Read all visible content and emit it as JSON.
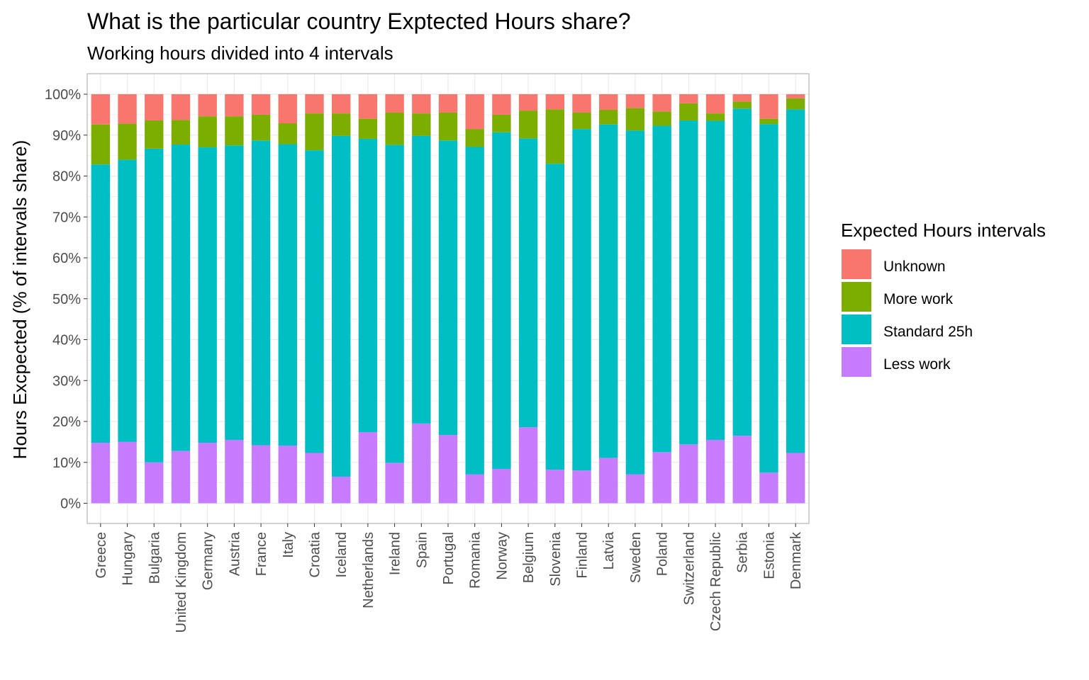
{
  "chart_data": {
    "type": "bar",
    "stacked": true,
    "title": "What is the particular country Exptected Hours share?",
    "subtitle": "Working hours divided into 4 intervals",
    "xlabel": "",
    "ylabel": "Hours Excpected (% of intervals share)",
    "ylim": [
      0,
      100
    ],
    "y_ticks": [
      "0%",
      "10%",
      "20%",
      "30%",
      "40%",
      "50%",
      "60%",
      "70%",
      "80%",
      "90%",
      "100%"
    ],
    "grid": true,
    "legend": {
      "title": "Expected Hours intervals",
      "placement": "right",
      "entries": [
        "Unknown",
        "More work",
        "Standard 25h",
        "Less work"
      ]
    },
    "categories": [
      "Greece",
      "Hungary",
      "Bulgaria",
      "United Kingdom",
      "Germany",
      "Austria",
      "France",
      "Italy",
      "Croatia",
      "Iceland",
      "Netherlands",
      "Ireland",
      "Spain",
      "Portugal",
      "Romania",
      "Norway",
      "Belgium",
      "Slovenia",
      "Finland",
      "Latvia",
      "Sweden",
      "Poland",
      "Switzerland",
      "Czech Republic",
      "Serbia",
      "Estonia",
      "Denmark"
    ],
    "series": [
      {
        "name": "Less work",
        "color": "#C77CFF",
        "values": [
          14.8,
          15.0,
          10.0,
          12.8,
          14.8,
          15.5,
          14.2,
          14.1,
          12.3,
          6.5,
          17.4,
          9.9,
          19.5,
          16.7,
          7.1,
          8.4,
          18.6,
          8.2,
          8.0,
          11.1,
          7.1,
          12.5,
          14.4,
          15.5,
          16.5,
          7.5,
          12.3
        ]
      },
      {
        "name": "Standard 25h",
        "color": "#00BFC4",
        "values": [
          68.0,
          69.0,
          76.7,
          74.9,
          72.2,
          72.0,
          74.5,
          73.7,
          74.0,
          83.3,
          71.7,
          77.7,
          70.3,
          72.0,
          80.0,
          82.3,
          70.6,
          74.8,
          83.5,
          81.5,
          84.0,
          79.8,
          79.2,
          78.0,
          80.0,
          85.2,
          84.0
        ]
      },
      {
        "name": "More work",
        "color": "#7CAE00",
        "values": [
          9.8,
          8.8,
          6.9,
          6.0,
          7.6,
          7.1,
          6.3,
          5.1,
          9.0,
          5.5,
          4.9,
          7.9,
          5.5,
          6.8,
          4.4,
          4.3,
          6.8,
          13.3,
          4.0,
          3.6,
          5.5,
          3.5,
          4.2,
          1.8,
          1.7,
          1.3,
          2.7
        ]
      },
      {
        "name": "Unknown",
        "color": "#F8766D",
        "values": [
          7.4,
          7.2,
          6.4,
          6.3,
          5.4,
          5.4,
          5.0,
          7.1,
          4.7,
          4.7,
          6.0,
          4.5,
          4.7,
          4.5,
          8.5,
          5.0,
          4.0,
          3.7,
          4.5,
          3.8,
          3.4,
          4.2,
          2.2,
          4.7,
          1.8,
          6.0,
          1.0
        ]
      }
    ]
  }
}
